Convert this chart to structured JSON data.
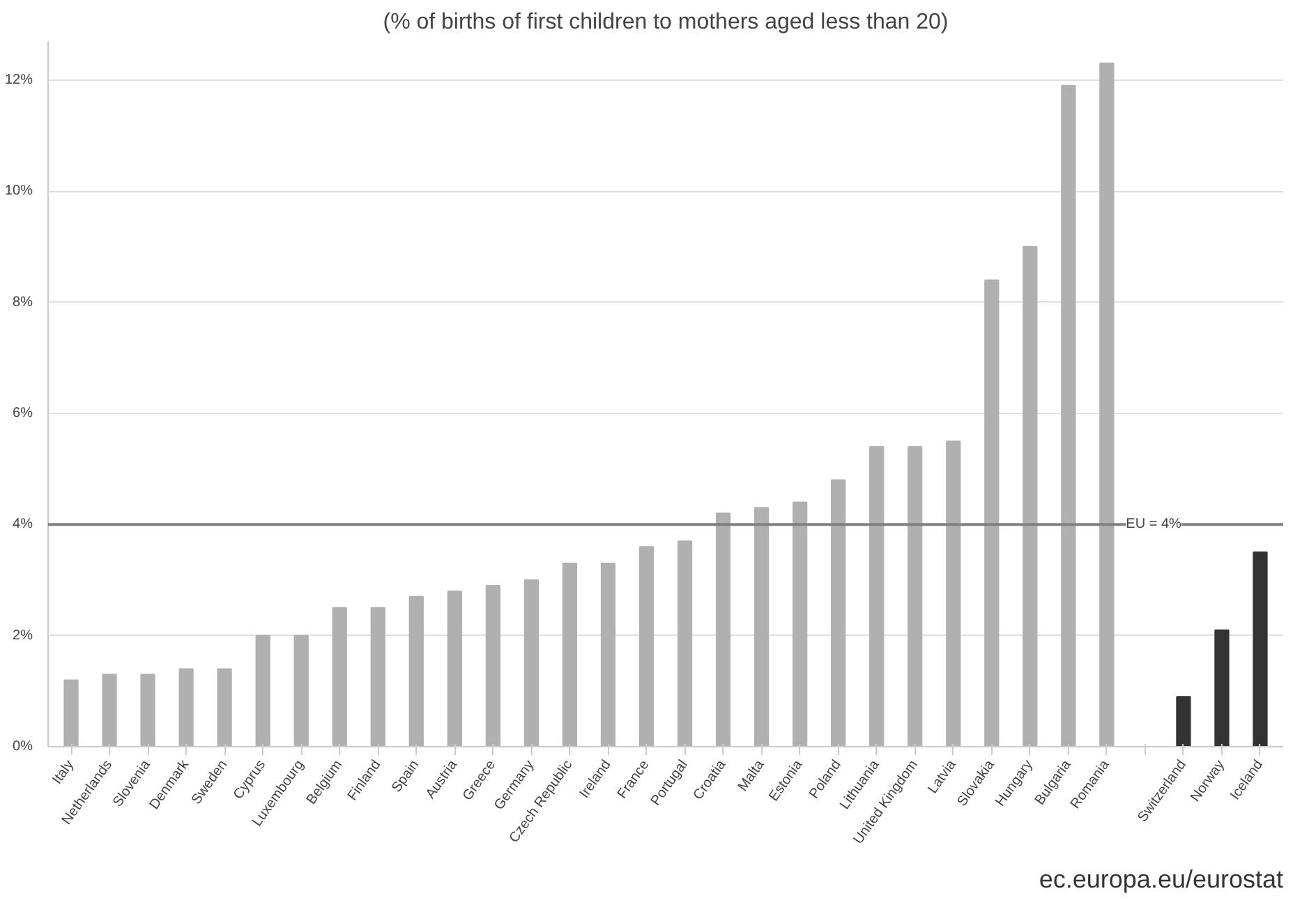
{
  "chart_data": {
    "type": "bar",
    "title": "(% of births of first children to mothers aged less than 20)",
    "categories": [
      "Italy",
      "Netherlands",
      "Slovenia",
      "Denmark",
      "Sweden",
      "Cyprus",
      "Luxembourg",
      "Belgium",
      "Finland",
      "Spain",
      "Austria",
      "Greece",
      "Germany",
      "Czech Republic",
      "Ireland",
      "France",
      "Portugal",
      "Croatia",
      "Malta",
      "Estonia",
      "Poland",
      "Lithuania",
      "United Kingdom",
      "Latvia",
      "Slovakia",
      "Hungary",
      "Bulgaria",
      "Romania",
      null,
      "Switzerland",
      "Norway",
      "Iceland"
    ],
    "values": [
      1.2,
      1.3,
      1.3,
      1.4,
      1.4,
      2.0,
      2.0,
      2.5,
      2.5,
      2.7,
      2.8,
      2.9,
      3.0,
      3.3,
      3.3,
      3.6,
      3.7,
      4.2,
      4.3,
      4.4,
      4.8,
      5.4,
      5.4,
      5.5,
      8.4,
      9.0,
      11.9,
      12.3,
      null,
      0.9,
      2.1,
      3.5
    ],
    "colors": [
      "#b0b0b0",
      "#b0b0b0",
      "#b0b0b0",
      "#b0b0b0",
      "#b0b0b0",
      "#b0b0b0",
      "#b0b0b0",
      "#b0b0b0",
      "#b0b0b0",
      "#b0b0b0",
      "#b0b0b0",
      "#b0b0b0",
      "#b0b0b0",
      "#b0b0b0",
      "#b0b0b0",
      "#b0b0b0",
      "#b0b0b0",
      "#b0b0b0",
      "#b0b0b0",
      "#b0b0b0",
      "#b0b0b0",
      "#b0b0b0",
      "#b0b0b0",
      "#b0b0b0",
      "#b0b0b0",
      "#b0b0b0",
      "#b0b0b0",
      "#b0b0b0",
      "#b0b0b0",
      "#333333",
      "#333333",
      "#333333"
    ],
    "ylim": [
      0,
      12.7
    ],
    "yticks": [
      {
        "value": 0,
        "label": "0%"
      },
      {
        "value": 2,
        "label": "2%"
      },
      {
        "value": 4,
        "label": "4%"
      },
      {
        "value": 6,
        "label": "6%"
      },
      {
        "value": 8,
        "label": "8%"
      },
      {
        "value": 10,
        "label": "10%"
      },
      {
        "value": 12,
        "label": "12%"
      }
    ],
    "ref_lines": [
      {
        "axis": "y",
        "value": 4,
        "label": "EU = 4%",
        "color": "#808080"
      }
    ],
    "grid": "y",
    "annotations": [
      "ec.europa.eu/eurostat"
    ]
  }
}
